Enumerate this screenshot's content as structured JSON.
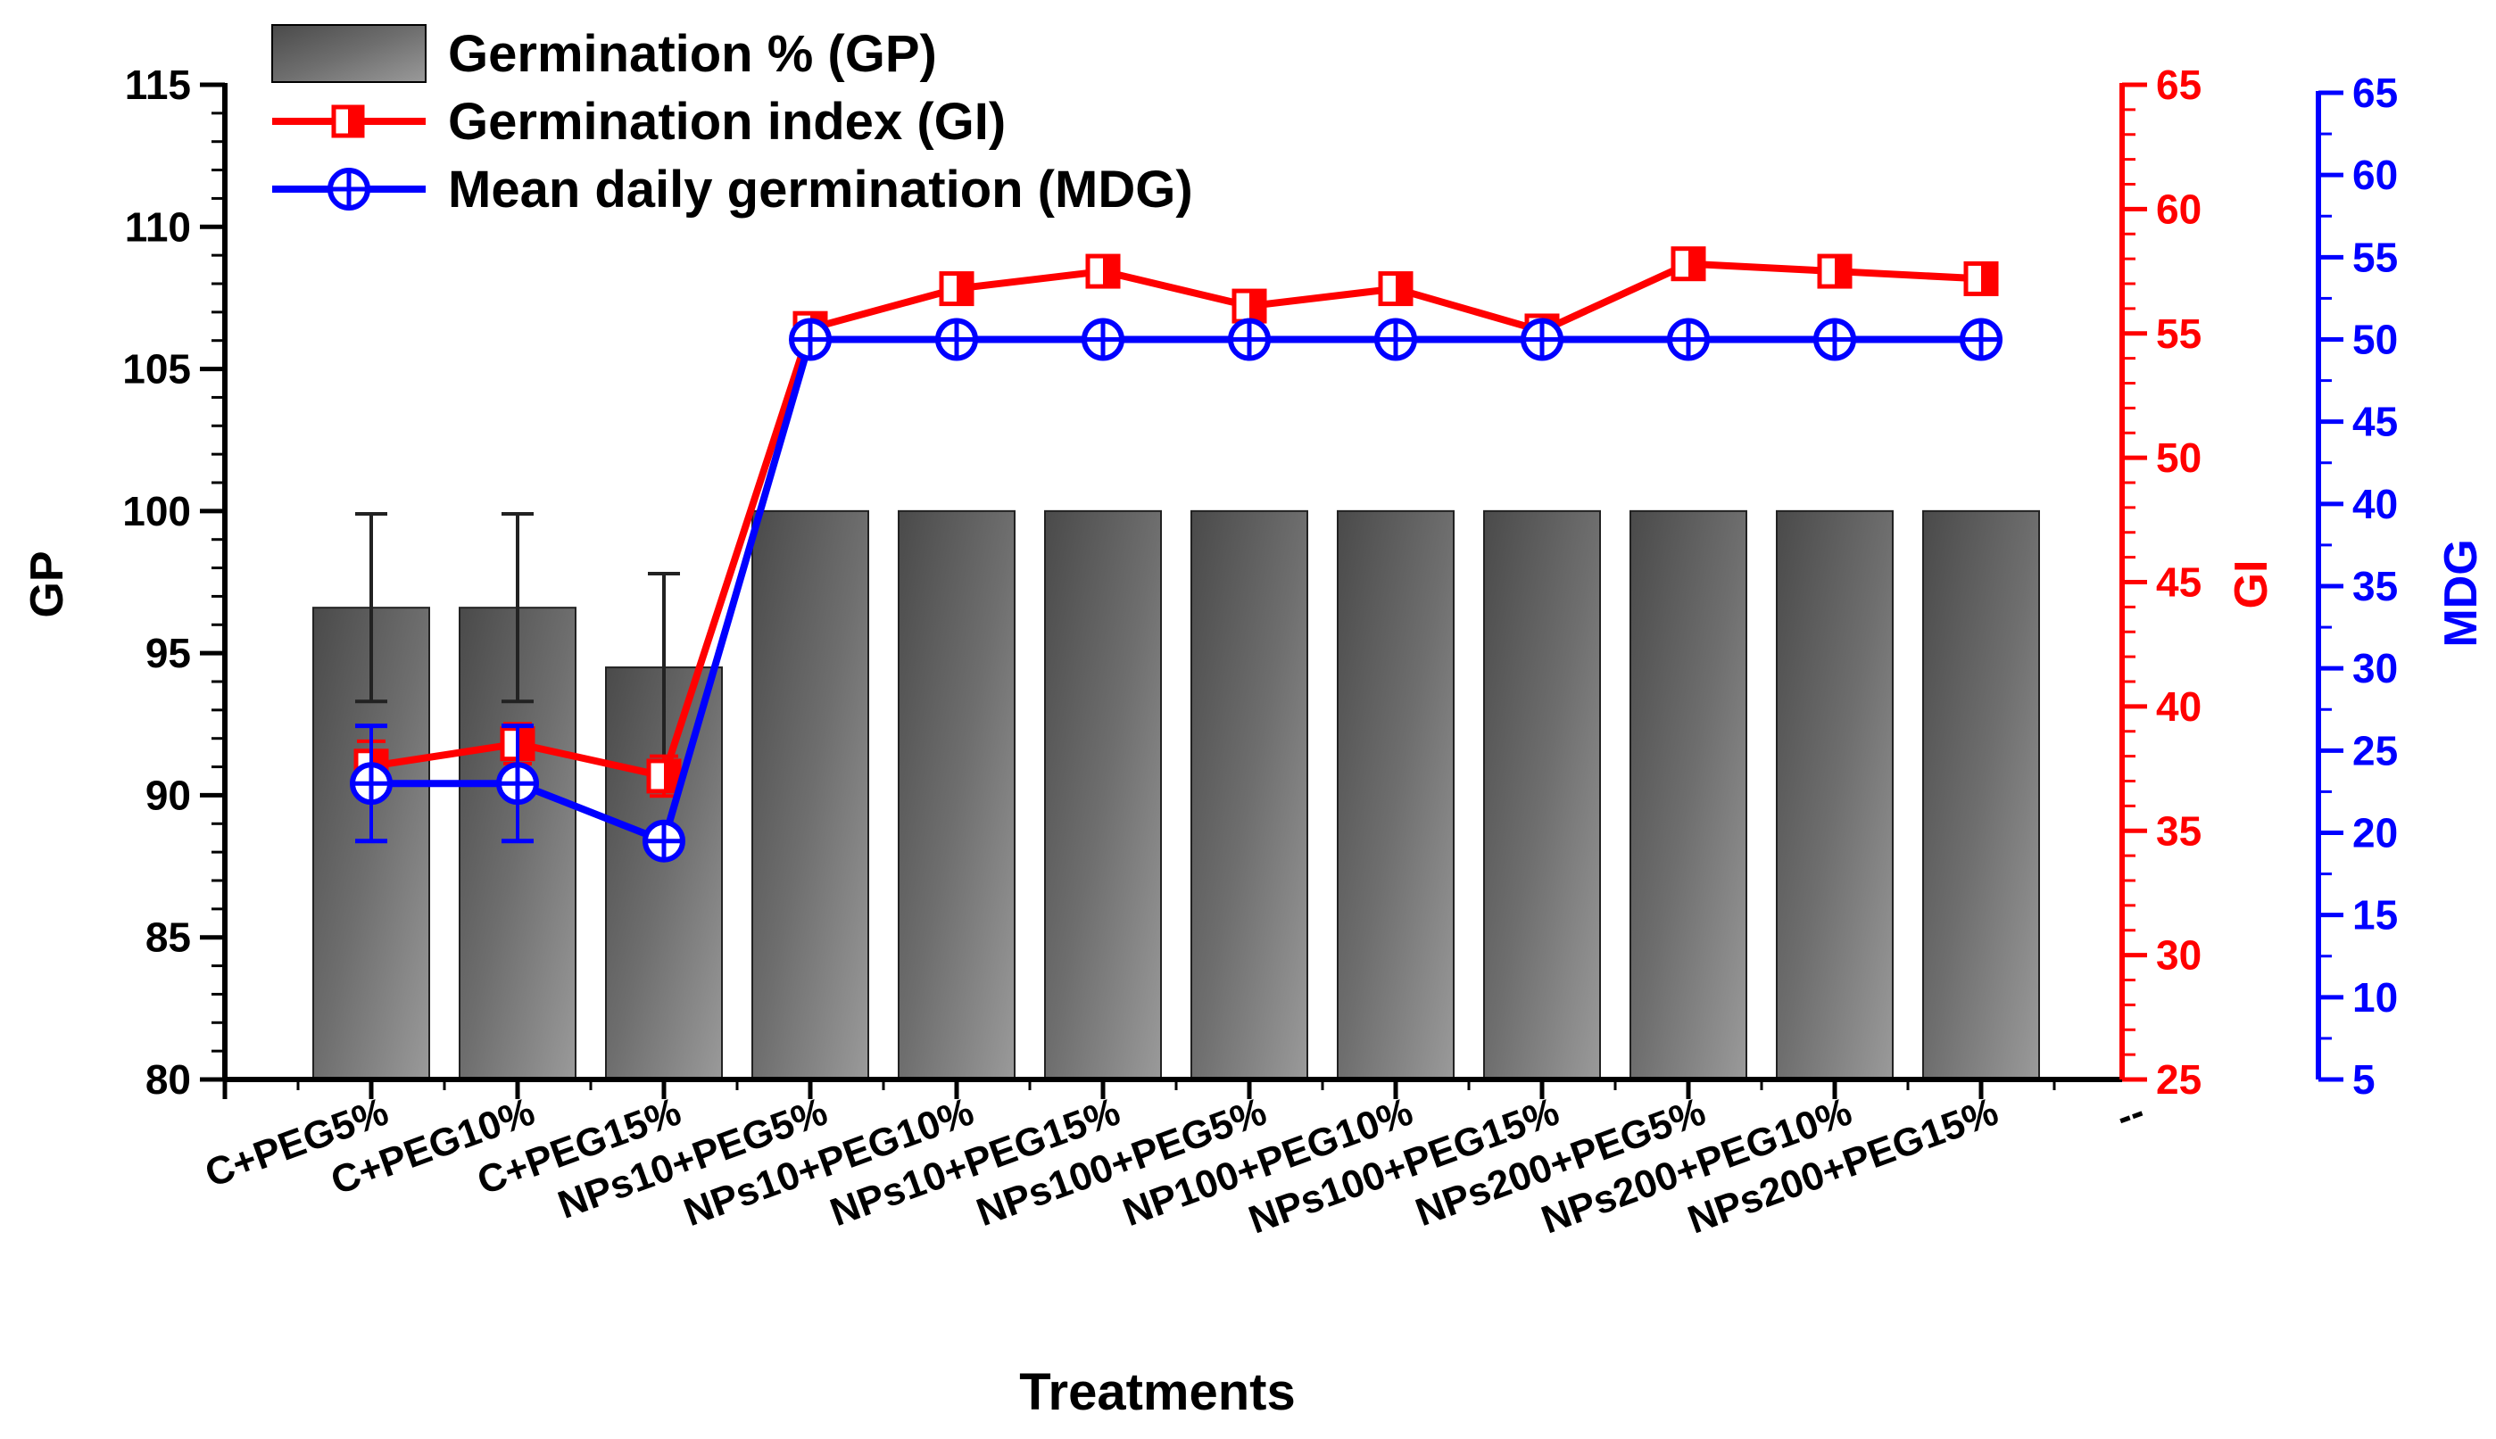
{
  "chart_data": {
    "type": "bar+line",
    "categories": [
      "C+PEG5%",
      "C+PEG10%",
      "C+PEG15%",
      "NPs10+PEG5%",
      "NPs10+PEG10%",
      "NPs10+PEG15%",
      "NPs100+PEG5%",
      "NP100+PEG10%",
      "NPs100+PEG15%",
      "NPs200+PEG5%",
      "NPs200+PEG10%",
      "NPs200+PEG15%"
    ],
    "extra_tick_label": "--",
    "xlabel": "Treatments",
    "axes": {
      "gp": {
        "label": "GP",
        "min": 80,
        "max": 115,
        "ticks": [
          80,
          85,
          90,
          95,
          100,
          105,
          110,
          115
        ],
        "color": "#000000"
      },
      "gi": {
        "label": "GI",
        "min": 25,
        "max": 65,
        "ticks": [
          25,
          30,
          35,
          40,
          45,
          50,
          55,
          60,
          65
        ],
        "color": "#ff0000"
      },
      "mdg": {
        "label": "MDG",
        "min": 5,
        "max": 65,
        "ticks": [
          5,
          10,
          15,
          20,
          25,
          30,
          35,
          40,
          45,
          50,
          55,
          60,
          65
        ],
        "color": "#0000ff"
      }
    },
    "series": [
      {
        "name": "Germination % (GP)",
        "type": "bar",
        "axis": "gp",
        "color": "#555555",
        "values": [
          96.6,
          96.6,
          94.5,
          100,
          100,
          100,
          100,
          100,
          100,
          100,
          100,
          100
        ],
        "errors": [
          3.3,
          3.3,
          3.3,
          null,
          null,
          null,
          null,
          null,
          null,
          null,
          null,
          null
        ]
      },
      {
        "name": "Germination index (GI)",
        "type": "line",
        "axis": "gi",
        "color": "#ff0000",
        "marker": "half-filled-square",
        "values": [
          37.6,
          38.5,
          37.2,
          55.2,
          56.8,
          57.5,
          56.1,
          56.8,
          55.1,
          57.8,
          57.5,
          57.2
        ],
        "errors": [
          1.0,
          0.8,
          0.8,
          null,
          null,
          null,
          null,
          null,
          null,
          null,
          null,
          null
        ]
      },
      {
        "name": "Mean daily germination (MDG)",
        "type": "line",
        "axis": "mdg",
        "color": "#0000ff",
        "marker": "circle-plus",
        "values": [
          23.0,
          23.0,
          19.5,
          50,
          50,
          50,
          50,
          50,
          50,
          50,
          50,
          50
        ],
        "errors": [
          3.5,
          3.5,
          null,
          null,
          null,
          null,
          null,
          null,
          null,
          null,
          null,
          null
        ]
      }
    ]
  }
}
